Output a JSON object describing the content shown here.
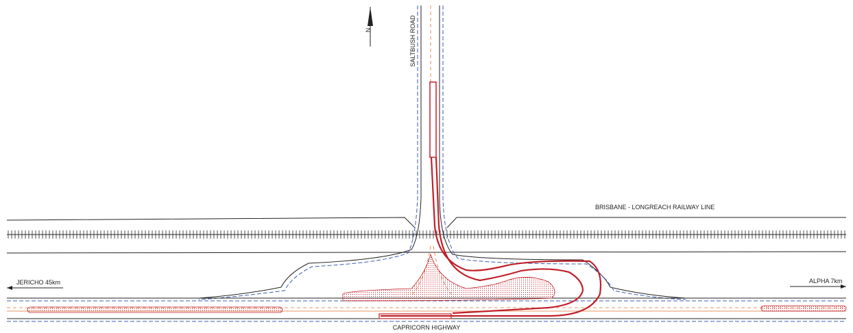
{
  "north_arrow": "N",
  "roads": {
    "side_road": "SALTBUSH ROAD",
    "railway": "BRISBANE - LONGREACH RAILWAY LINE",
    "highway": "CAPRICORN HIGHWAY"
  },
  "destinations": {
    "west": "JERICHO 45km",
    "east": "ALPHA 7km"
  }
}
